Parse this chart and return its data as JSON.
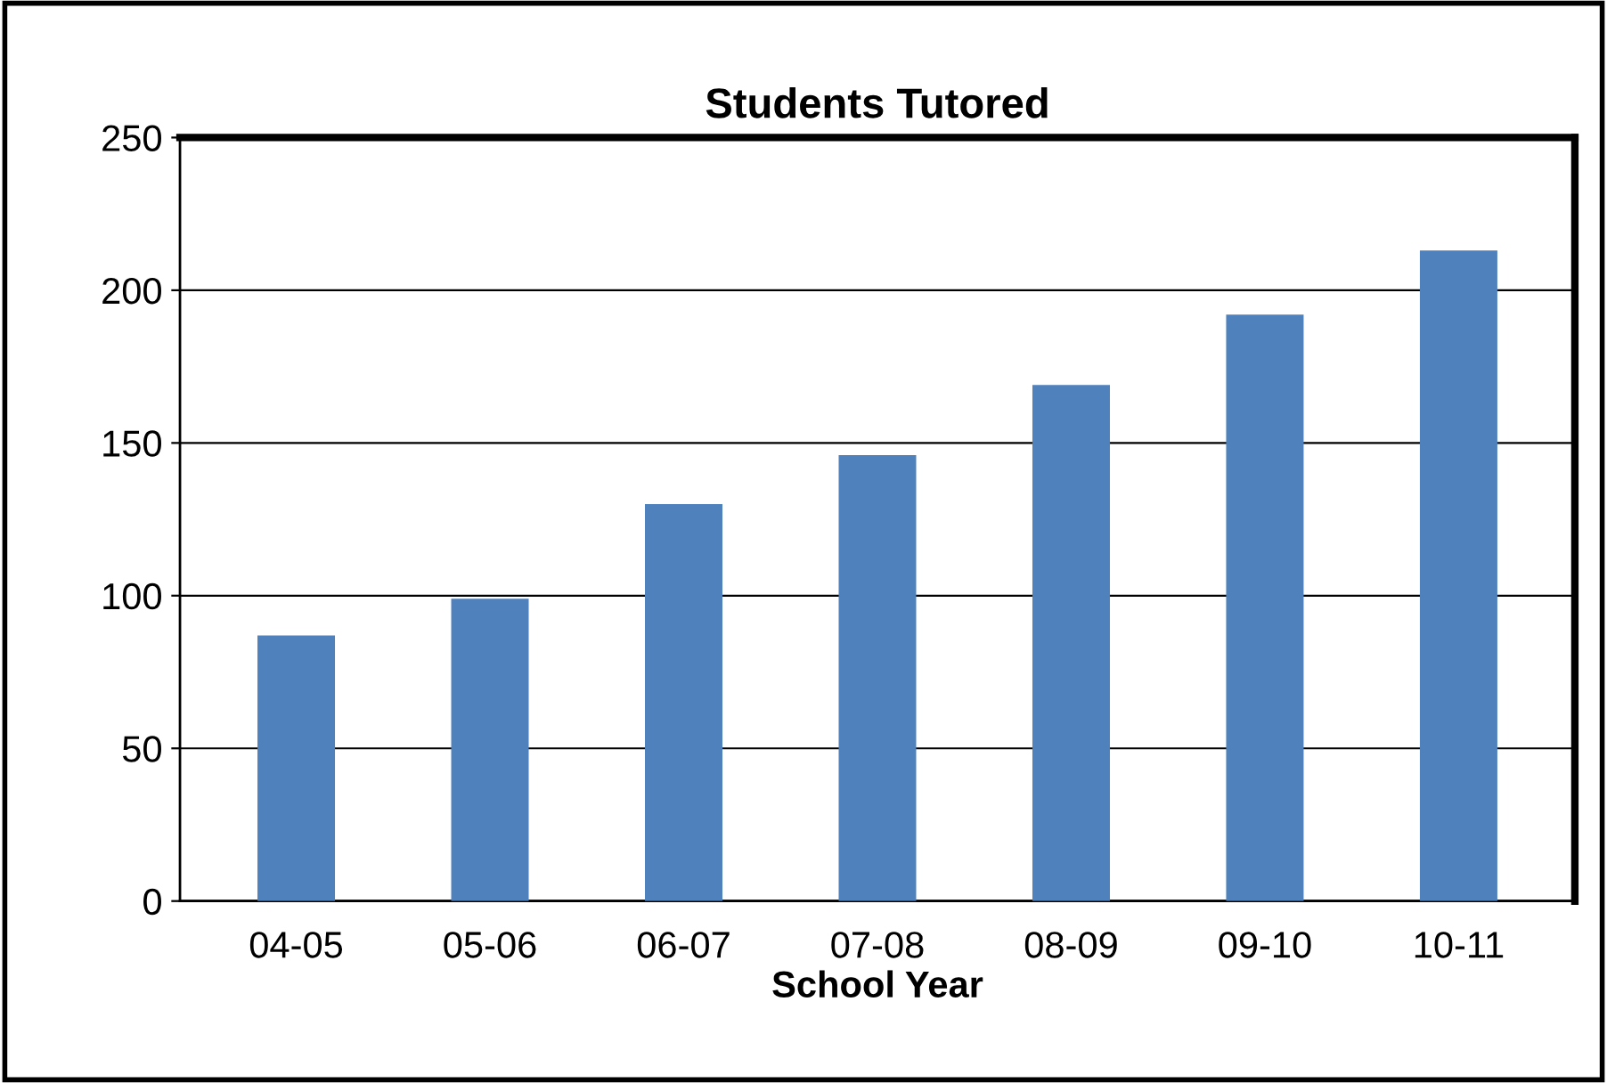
{
  "chart_data": {
    "type": "bar",
    "title": "Students Tutored",
    "xlabel": "School Year",
    "categories": [
      "04-05",
      "05-06",
      "06-07",
      "07-08",
      "08-09",
      "09-10",
      "10-11"
    ],
    "values": [
      87,
      99,
      130,
      146,
      169,
      192,
      213
    ],
    "color": "#4f81bd",
    "ylim": [
      0,
      250
    ],
    "yticks": [
      0,
      50,
      100,
      150,
      200,
      250
    ],
    "grid": "y"
  }
}
